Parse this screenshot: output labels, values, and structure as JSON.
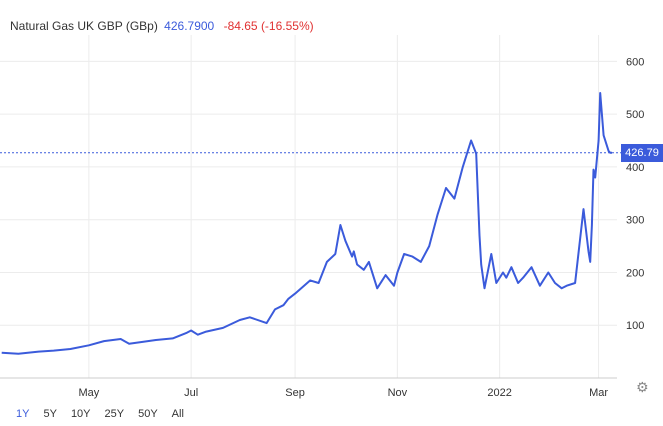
{
  "header": {
    "instrument": "Natural Gas UK GBP (GBp)",
    "last": "426.7900",
    "change": "-84.65 (-16.55%)"
  },
  "price_tag": "426.79",
  "ranges": [
    "1Y",
    "5Y",
    "10Y",
    "25Y",
    "50Y",
    "All"
  ],
  "active_range": "1Y",
  "icons": {
    "settings": "gear-icon"
  },
  "colors": {
    "line": "#3b5bdb",
    "change_negative": "#e03131",
    "grid": "#ececec"
  },
  "chart_data": {
    "type": "line",
    "title": "",
    "xlabel": "",
    "ylabel": "",
    "ylim": [
      0,
      650
    ],
    "x_tick_labels": [
      "May",
      "Jul",
      "Sep",
      "Nov",
      "2022",
      "Mar"
    ],
    "y_tick_labels": [
      "100",
      "200",
      "300",
      "400",
      "500",
      "600"
    ],
    "grid": true,
    "last_value": 426.79,
    "series": [
      {
        "name": "",
        "x": [
          "2021-03-10",
          "2021-03-20",
          "2021-04-01",
          "2021-04-10",
          "2021-04-20",
          "2021-05-01",
          "2021-05-10",
          "2021-05-20",
          "2021-05-25",
          "2021-06-01",
          "2021-06-10",
          "2021-06-20",
          "2021-06-28",
          "2021-07-01",
          "2021-07-05",
          "2021-07-10",
          "2021-07-20",
          "2021-07-30",
          "2021-08-05",
          "2021-08-15",
          "2021-08-20",
          "2021-08-25",
          "2021-08-28",
          "2021-09-01",
          "2021-09-10",
          "2021-09-15",
          "2021-09-20",
          "2021-09-25",
          "2021-09-28",
          "2021-10-01",
          "2021-10-05",
          "2021-10-06",
          "2021-10-08",
          "2021-10-12",
          "2021-10-15",
          "2021-10-20",
          "2021-10-25",
          "2021-10-30",
          "2021-11-01",
          "2021-11-05",
          "2021-11-10",
          "2021-11-15",
          "2021-11-20",
          "2021-11-25",
          "2021-11-30",
          "2021-12-05",
          "2021-12-10",
          "2021-12-15",
          "2021-12-18",
          "2021-12-20",
          "2021-12-21",
          "2021-12-23",
          "2021-12-27",
          "2021-12-30",
          "2022-01-03",
          "2022-01-05",
          "2022-01-08",
          "2022-01-12",
          "2022-01-15",
          "2022-01-20",
          "2022-01-25",
          "2022-01-30",
          "2022-02-03",
          "2022-02-07",
          "2022-02-10",
          "2022-02-15",
          "2022-02-20",
          "2022-02-23",
          "2022-02-24",
          "2022-02-25",
          "2022-02-26",
          "2022-02-27",
          "2022-03-01",
          "2022-03-02",
          "2022-03-03",
          "2022-03-04",
          "2022-03-07",
          "2022-03-08",
          "2022-03-09"
        ],
        "values": [
          48,
          46,
          50,
          52,
          55,
          62,
          70,
          74,
          65,
          68,
          72,
          75,
          85,
          90,
          82,
          88,
          95,
          110,
          115,
          104,
          130,
          138,
          150,
          160,
          185,
          180,
          220,
          235,
          290,
          260,
          230,
          240,
          215,
          205,
          220,
          170,
          195,
          175,
          200,
          235,
          230,
          220,
          250,
          310,
          360,
          340,
          400,
          450,
          425,
          270,
          215,
          170,
          235,
          180,
          200,
          190,
          210,
          180,
          190,
          210,
          175,
          200,
          180,
          170,
          175,
          180,
          320,
          240,
          220,
          290,
          395,
          380,
          450,
          540,
          500,
          460,
          430,
          426.79,
          426.79
        ]
      }
    ]
  }
}
